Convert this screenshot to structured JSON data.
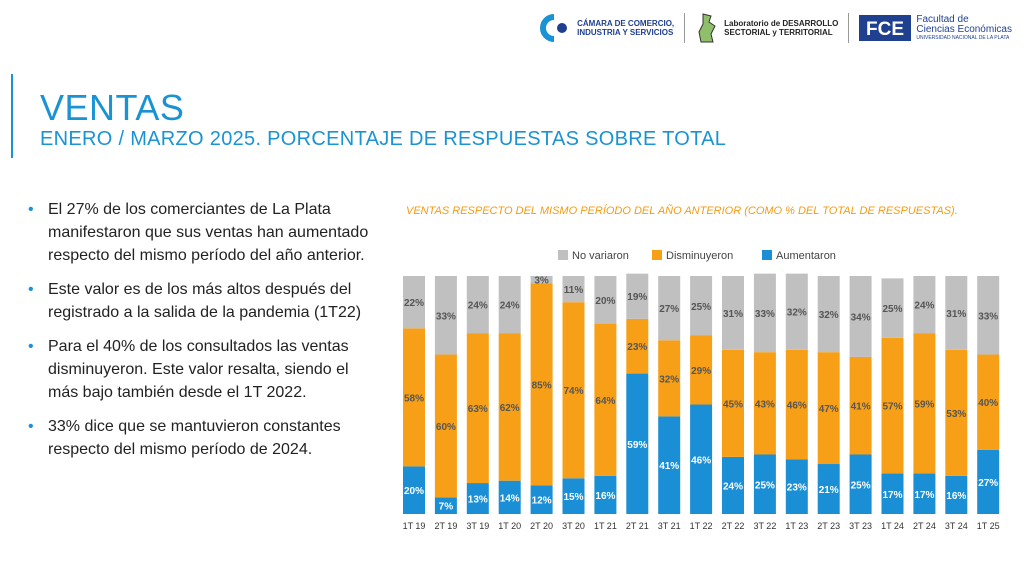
{
  "header": {
    "logo_camara": [
      "CÁMARA DE COMERCIO,",
      "INDUSTRIA Y SERVICIOS"
    ],
    "logo_laboratorio": [
      "Laboratorio de DESARROLLO",
      "SECTORIAL y TERRITORIAL"
    ],
    "logo_fce": [
      "Facultad de",
      "Ciencias Económicas",
      "UNIVERSIDAD NACIONAL DE LA PLATA"
    ],
    "fce_mark": "FCE",
    "brand_color": "#1a93d5"
  },
  "page": {
    "title": "VENTAS",
    "subtitle": "ENERO / MARZO 2025. PORCENTAJE DE RESPUESTAS SOBRE TOTAL"
  },
  "bullets": [
    "El 27% de los comerciantes de La Plata manifestaron que sus ventas han aumentado respecto del mismo período del año anterior.",
    "Este valor es de los más altos después del registrado a la salida de la pandemia (1T22)",
    "Para el 40% de los consultados las ventas disminuyeron. Este valor resalta, siendo el más bajo también desde el 1T 2022.",
    "33% dice que se mantuvieron constantes respecto del mismo período de 2024."
  ],
  "chart_data": {
    "type": "bar",
    "stacked": true,
    "title": "VENTAS RESPECTO DEL MISMO PERÍODO DEL AÑO ANTERIOR (COMO % DEL TOTAL DE RESPUESTAS).",
    "categories": [
      "1T 19",
      "2T 19",
      "3T 19",
      "1T 20",
      "2T 20",
      "3T 20",
      "1T 21",
      "2T 21",
      "3T 21",
      "1T 22",
      "2T 22",
      "3T 22",
      "1T 23",
      "2T 23",
      "3T 23",
      "1T 24",
      "2T 24",
      "3T 24",
      "1T 25"
    ],
    "series": [
      {
        "name": "Aumentaron",
        "color": "#1a8fd6",
        "values": [
          20,
          7,
          13,
          14,
          12,
          15,
          16,
          59,
          41,
          46,
          24,
          25,
          23,
          21,
          25,
          17,
          17,
          16,
          27
        ]
      },
      {
        "name": "Disminuyeron",
        "color": "#f7a017",
        "values": [
          58,
          60,
          63,
          62,
          85,
          74,
          64,
          23,
          32,
          29,
          45,
          43,
          46,
          47,
          41,
          57,
          59,
          53,
          40
        ]
      },
      {
        "name": "No variaron",
        "color": "#c0c0c0",
        "values": [
          22,
          33,
          24,
          24,
          3,
          11,
          20,
          19,
          27,
          25,
          31,
          33,
          32,
          32,
          34,
          25,
          24,
          31,
          33
        ]
      }
    ],
    "legend": [
      "No variaron",
      "Disminuyeron",
      "Aumentaron"
    ],
    "legend_position": "top",
    "ylim": [
      0,
      100
    ],
    "label_suffix": "%"
  }
}
